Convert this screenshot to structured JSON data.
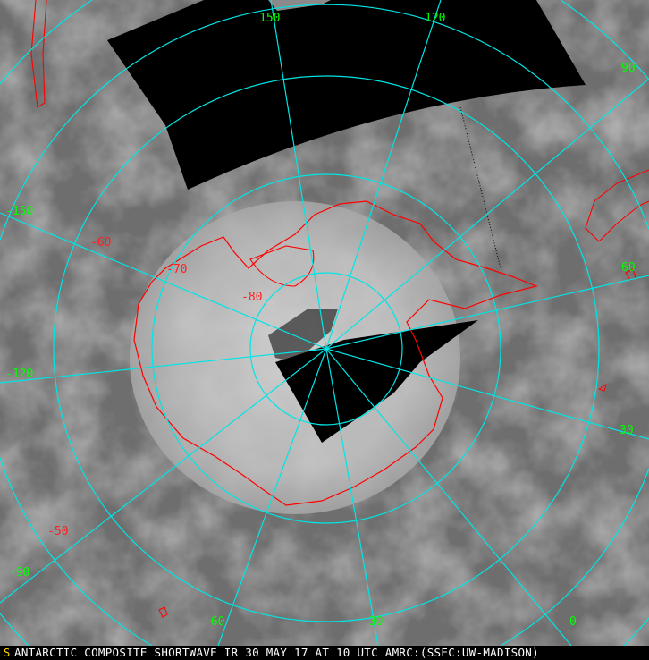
{
  "caption": "ANTARCTIC COMPOSITE SHORTWAVE IR 30 MAY 17 AT 10 UTC AMRC:(SSEC:UW-MADISON)",
  "logo_text": "S",
  "longitude_labels": {
    "lon150": "150",
    "lon120": "120",
    "lon90": "90",
    "lon60": "60",
    "lon30": "30",
    "lon0": "0",
    "lonm30": "-30",
    "lonm60": "-60",
    "lonm90": "-90",
    "lonm120": "-120",
    "lonm150": "-150"
  },
  "latitude_labels": {
    "latm50": "-50",
    "latm60": "-60",
    "latm70": "-70",
    "latm80": "-80"
  },
  "colors": {
    "graticule": "#00e5e5",
    "coastline": "#ff0000",
    "lon_label": "#00ff00",
    "lat_label": "#ff2020",
    "no_data": "#000000"
  }
}
